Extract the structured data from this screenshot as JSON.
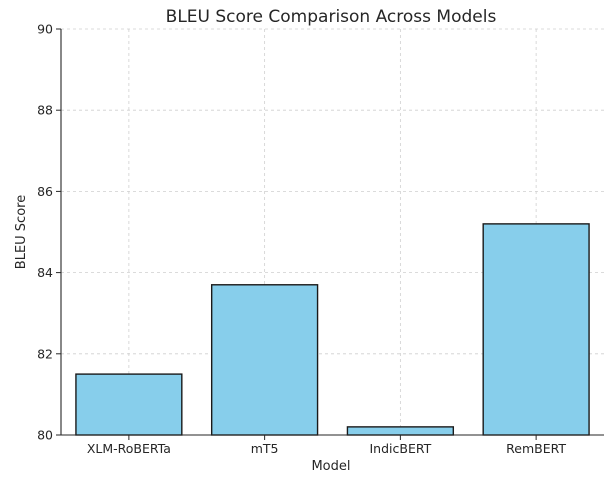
{
  "chart_data": {
    "type": "bar",
    "title": "BLEU Score Comparison Across Models",
    "xlabel": "Model",
    "ylabel": "BLEU Score",
    "categories": [
      "XLM-RoBERTa",
      "mT5",
      "IndicBERT",
      "RemBERT"
    ],
    "values": [
      81.5,
      83.7,
      80.2,
      85.2
    ],
    "ylim": [
      80,
      90
    ],
    "yticks": [
      "80",
      "82",
      "84",
      "86",
      "88",
      "90"
    ],
    "grid": true,
    "legend": "none",
    "colors": {
      "bar_fill": "#87ceeb",
      "bar_edge": "#1a1a1a"
    }
  }
}
